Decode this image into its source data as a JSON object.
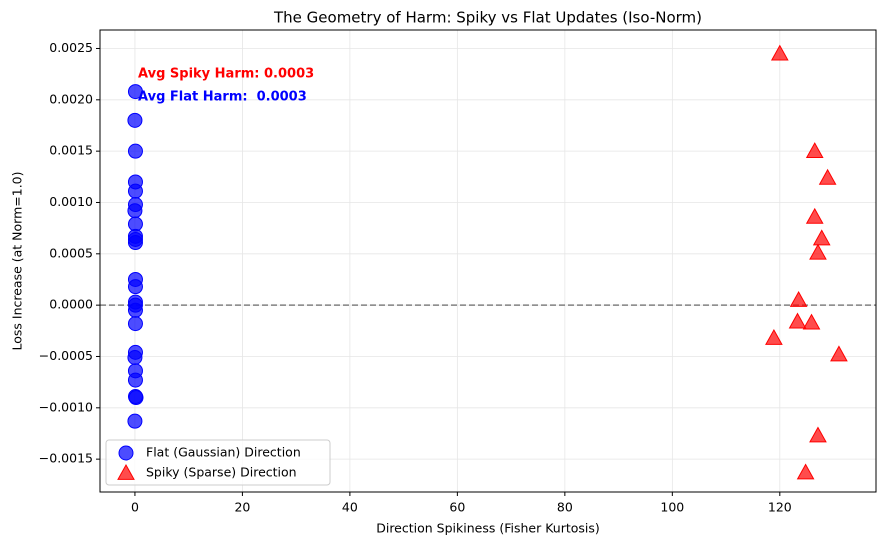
{
  "chart_data": {
    "type": "scatter",
    "title": "The Geometry of Harm: Spiky vs Flat Updates (Iso-Norm)",
    "x_label": "Direction Spikiness (Fisher Kurtosis)",
    "y_label": "Loss Increase (at Norm=1.0)",
    "xlim": [
      -6.5,
      137.9
    ],
    "ylim": [
      -0.00182,
      0.00268
    ],
    "xticks": [
      0,
      20,
      40,
      60,
      80,
      100,
      120
    ],
    "yticks": [
      {
        "value": -0.0015,
        "label": "−0.0015"
      },
      {
        "value": -0.001,
        "label": "−0.0010"
      },
      {
        "value": -0.0005,
        "label": "−0.0005"
      },
      {
        "value": 0,
        "label": "0.0000"
      },
      {
        "value": 0.0005,
        "label": "0.0005"
      },
      {
        "value": 0.001,
        "label": "0.0010"
      },
      {
        "value": 0.0015,
        "label": "0.0015"
      },
      {
        "value": 0.002,
        "label": "0.0020"
      },
      {
        "value": 0.0025,
        "label": "0.0025"
      }
    ],
    "grid": true,
    "legend": "lower left",
    "reference_line": {
      "y": 0,
      "color": "#808080"
    },
    "series": [
      {
        "name": "Flat (Gaussian) Direction",
        "color": "#0000ff",
        "marker": "circle",
        "x": [
          0.1,
          0,
          0.1,
          0.1,
          0.1,
          0.1,
          0,
          0.1,
          0.1,
          0.1,
          0.1,
          0.1,
          0.1,
          0.1,
          0.1,
          0.1,
          0.1,
          0.1,
          0,
          0.1,
          0.1,
          0.1,
          0.2,
          0
        ],
        "values": [
          0.00208,
          0.0018,
          0.0015,
          0.0012,
          0.00111,
          0.00098,
          0.00092,
          0.00079,
          0.00067,
          0.00064,
          0.00061,
          0.00025,
          0.00018,
          3e-05,
          0.0,
          -5e-05,
          -0.00018,
          -0.00046,
          -0.00051,
          -0.00064,
          -0.00073,
          -0.00089,
          -0.0009,
          -0.00113
        ]
      },
      {
        "name": "Spiky (Sparse) Direction",
        "color": "#ff0000",
        "marker": "triangle",
        "x": [
          120.0,
          126.5,
          128.9,
          126.5,
          127.8,
          127.1,
          123.5,
          123.3,
          125.9,
          118.9,
          131.0,
          127.1,
          124.8
        ],
        "values": [
          0.00245,
          0.0015,
          0.00124,
          0.00086,
          0.00065,
          0.00051,
          5e-05,
          -0.00016,
          -0.00017,
          -0.00032,
          -0.00048,
          -0.00127,
          -0.00163
        ]
      }
    ],
    "annotations": [
      {
        "text": "Avg Spiky Harm: 0.0003",
        "color": "#ff0000"
      },
      {
        "text": "Avg Flat Harm:  0.0003",
        "color": "#0000ff"
      }
    ]
  }
}
